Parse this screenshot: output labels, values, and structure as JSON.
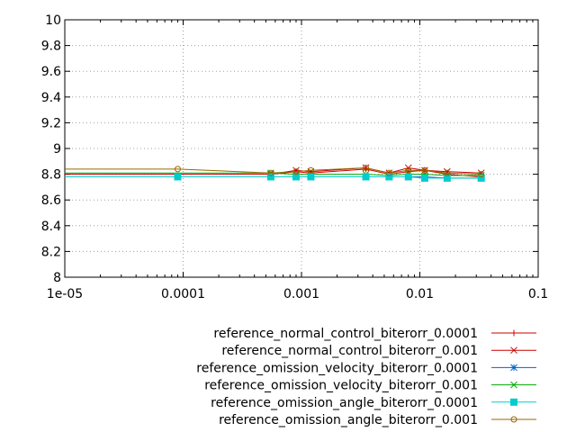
{
  "chart_data": {
    "type": "line",
    "title": "",
    "xlabel": "",
    "ylabel": "",
    "x_scale": "log",
    "xlim": [
      1e-05,
      0.1
    ],
    "ylim": [
      8,
      10
    ],
    "x_ticks": [
      "1e-05",
      "0.0001",
      "0.001",
      "0.01",
      "0.1"
    ],
    "x_tick_values": [
      1e-05,
      0.0001,
      0.001,
      0.01,
      0.1
    ],
    "y_ticks": [
      "8",
      "8.2",
      "8.4",
      "8.6",
      "8.8",
      "9",
      "9.2",
      "9.4",
      "9.6",
      "9.8",
      "10"
    ],
    "y_tick_values": [
      8,
      8.2,
      8.4,
      8.6,
      8.8,
      9,
      9.2,
      9.4,
      9.6,
      9.8,
      10
    ],
    "grid": true,
    "legend_position": "bottom-right",
    "series": [
      {
        "name": "reference_normal_control_biterorr_0.0001",
        "color": "#cc0000",
        "marker": "plus",
        "x": [
          1e-05,
          0.00055,
          0.0009,
          0.0012,
          0.0035,
          0.0055,
          0.008,
          0.011,
          0.017,
          0.033
        ],
        "y": [
          8.8,
          8.8,
          8.82,
          8.81,
          8.84,
          8.8,
          8.82,
          8.83,
          8.8,
          8.78
        ]
      },
      {
        "name": "reference_normal_control_biterorr_0.001",
        "color": "#cc0000",
        "marker": "cross",
        "x": [
          0.00055,
          0.0009,
          0.0012,
          0.0035,
          0.0055,
          0.008,
          0.011,
          0.017,
          0.033
        ],
        "y": [
          8.8,
          8.83,
          8.82,
          8.85,
          8.81,
          8.85,
          8.83,
          8.82,
          8.81
        ]
      },
      {
        "name": "reference_omission_velocity_biterorr_0.0001",
        "color": "#0066cc",
        "marker": "star",
        "x": [
          1e-05,
          9e-05,
          0.00055,
          0.0009,
          0.0012,
          0.0035,
          0.0055,
          0.008,
          0.011,
          0.017,
          0.033
        ],
        "y": [
          8.78,
          8.78,
          8.78,
          8.78,
          8.78,
          8.78,
          8.78,
          8.78,
          8.78,
          8.77,
          8.77
        ]
      },
      {
        "name": "reference_omission_velocity_biterorr_0.001",
        "color": "#00aa00",
        "marker": "cross",
        "x": [
          1e-05,
          0.00055,
          0.0009,
          0.0012,
          0.0035,
          0.0055,
          0.008,
          0.011,
          0.017,
          0.033
        ],
        "y": [
          8.81,
          8.81,
          8.8,
          8.8,
          8.8,
          8.79,
          8.8,
          8.8,
          8.79,
          8.79
        ]
      },
      {
        "name": "reference_omission_angle_biterorr_0.0001",
        "color": "#00cccc",
        "marker": "square",
        "x": [
          1e-05,
          9e-05,
          0.00055,
          0.0009,
          0.0012,
          0.0035,
          0.0055,
          0.008,
          0.011,
          0.017,
          0.033
        ],
        "y": [
          8.78,
          8.78,
          8.78,
          8.78,
          8.78,
          8.78,
          8.78,
          8.78,
          8.77,
          8.77,
          8.77
        ]
      },
      {
        "name": "reference_omission_angle_biterorr_0.001",
        "color": "#996600",
        "marker": "circle",
        "x": [
          1e-05,
          9e-05,
          0.00055,
          0.0009,
          0.0012,
          0.0035,
          0.0055,
          0.008,
          0.011,
          0.017,
          0.033
        ],
        "y": [
          8.84,
          8.84,
          8.81,
          8.82,
          8.83,
          8.85,
          8.81,
          8.83,
          8.83,
          8.81,
          8.8
        ]
      }
    ]
  }
}
